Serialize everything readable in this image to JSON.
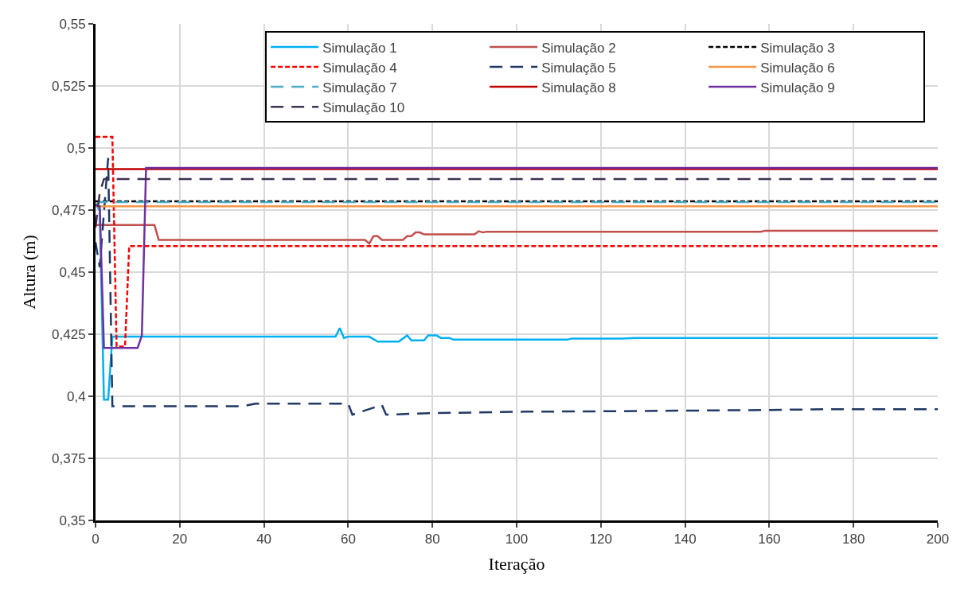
{
  "chart_data": {
    "type": "line",
    "xlabel": "Iteração",
    "ylabel": "Altura (m)",
    "xlim": [
      0,
      200
    ],
    "xticks": [
      0,
      20,
      40,
      60,
      80,
      100,
      120,
      140,
      160,
      180,
      200
    ],
    "ylim": [
      0.35,
      0.55
    ],
    "yticks": [
      {
        "value": 0.35,
        "label": "0,35"
      },
      {
        "value": 0.375,
        "label": "0,375"
      },
      {
        "value": 0.4,
        "label": "0,4"
      },
      {
        "value": 0.425,
        "label": "0,425"
      },
      {
        "value": 0.45,
        "label": "0,45"
      },
      {
        "value": 0.475,
        "label": "0,475"
      },
      {
        "value": 0.5,
        "label": "0,5"
      },
      {
        "value": 0.525,
        "label": "0,525"
      },
      {
        "value": 0.55,
        "label": "0,55"
      }
    ],
    "grid": true,
    "legend": "top right",
    "marker": "none",
    "series": [
      {
        "name": "Simulação 1",
        "color": "#00b0f0",
        "line_style": "solid",
        "x": [
          0,
          1,
          2,
          3,
          4,
          57,
          58,
          59,
          60,
          65,
          67,
          72,
          74,
          75,
          78,
          79,
          81,
          82,
          84,
          85,
          112,
          113,
          125,
          128,
          175,
          176,
          200
        ],
        "values": [
          0.4775,
          0.4748,
          0.3986,
          0.3986,
          0.424,
          0.424,
          0.4275,
          0.4235,
          0.424,
          0.424,
          0.422,
          0.422,
          0.4245,
          0.4225,
          0.4225,
          0.4245,
          0.4245,
          0.4235,
          0.4235,
          0.4228,
          0.4228,
          0.4232,
          0.4232,
          0.4235,
          0.4235,
          0.4235,
          0.4235
        ]
      },
      {
        "name": "Simulação 2",
        "color": "#c0504d",
        "line_style": "solid",
        "x": [
          0,
          14,
          15,
          64,
          65,
          66,
          67,
          68,
          73,
          74,
          75,
          76,
          77,
          78,
          90,
          91,
          92,
          93,
          158,
          159,
          200
        ],
        "values": [
          0.469,
          0.469,
          0.463,
          0.463,
          0.4615,
          0.4645,
          0.4645,
          0.463,
          0.463,
          0.4645,
          0.4645,
          0.466,
          0.466,
          0.4652,
          0.4652,
          0.4665,
          0.466,
          0.4663,
          0.4663,
          0.4667,
          0.4667
        ]
      },
      {
        "name": "Simulação 3",
        "color": "#000000",
        "line_style": "dotted",
        "x": [
          0,
          200
        ],
        "values": [
          0.4785,
          0.4785
        ]
      },
      {
        "name": "Simulação 4",
        "color": "#ff0000",
        "line_style": "dotted",
        "x": [
          0,
          4,
          5,
          6,
          7,
          8,
          200
        ],
        "values": [
          0.5045,
          0.5045,
          0.42,
          0.42,
          0.42,
          0.4605,
          0.4605
        ]
      },
      {
        "name": "Simulação 5",
        "color": "#1f3864",
        "line_style": "dashed",
        "x": [
          0,
          1,
          3,
          4,
          35,
          38,
          60,
          61,
          68,
          69,
          79,
          102,
          125,
          160,
          175,
          200
        ],
        "values": [
          0.462,
          0.452,
          0.496,
          0.396,
          0.396,
          0.397,
          0.397,
          0.3926,
          0.3965,
          0.3926,
          0.3932,
          0.3938,
          0.394,
          0.3945,
          0.3948,
          0.3948
        ]
      },
      {
        "name": "Simulação 6",
        "color": "#f79646",
        "line_style": "solid",
        "x": [
          0,
          200
        ],
        "values": [
          0.4765,
          0.4765
        ]
      },
      {
        "name": "Simulação 7",
        "color": "#4bacc6",
        "line_style": "dashed",
        "x": [
          0,
          1,
          200
        ],
        "values": [
          0.477,
          0.4782,
          0.4782
        ]
      },
      {
        "name": "Simulação 8",
        "color": "#c00000",
        "line_style": "solid",
        "x": [
          0,
          200
        ],
        "values": [
          0.4915,
          0.4915
        ]
      },
      {
        "name": "Simulação 9",
        "color": "#7030a0",
        "line_style": "solid",
        "x": [
          0,
          1,
          2,
          10,
          11,
          12,
          200
        ],
        "values": [
          0.477,
          0.4765,
          0.4195,
          0.4195,
          0.4245,
          0.492,
          0.492
        ]
      },
      {
        "name": "Simulação 10",
        "color": "#3f3151",
        "line_style": "dashed",
        "x": [
          0,
          1,
          2,
          200
        ],
        "values": [
          0.468,
          0.482,
          0.4875,
          0.4875
        ]
      }
    ]
  }
}
